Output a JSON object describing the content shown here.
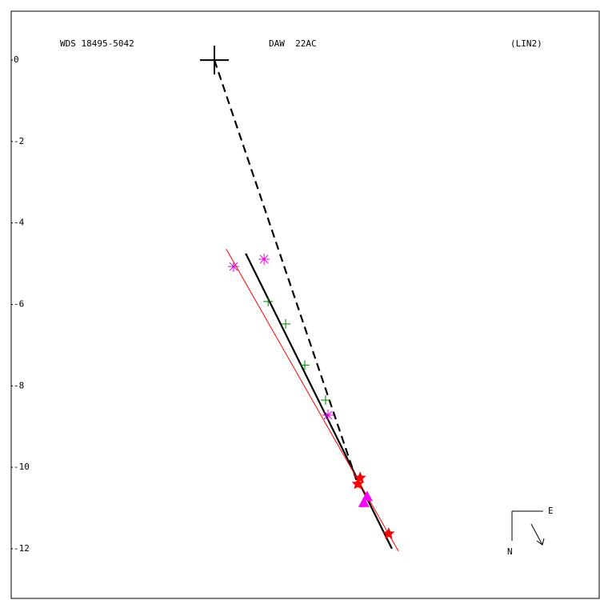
{
  "chart_data": {
    "type": "scatter",
    "title": "WDS 18495-5042",
    "subtitle": "DAW  22AC",
    "annotation": "(LIN2)",
    "xlim": [
      -4.99,
      9.45
    ],
    "ylim": [
      -13.22,
      1.2
    ],
    "yticks": [
      0,
      -2,
      -4,
      -6,
      -8,
      -10,
      -12
    ],
    "compass": [
      "E",
      "N"
    ],
    "series": [
      {
        "marker": "line-dashed",
        "color": "#000000",
        "x": [
          0,
          3.52
        ],
        "y": [
          0,
          -10.41
        ]
      },
      {
        "marker": "line",
        "color": "#000000",
        "x": [
          0.77,
          4.36
        ],
        "y": [
          -4.75,
          -12.0
        ]
      },
      {
        "marker": "line-thin",
        "color": "#ff0000",
        "x": [
          0.29,
          4.52
        ],
        "y": [
          -4.64,
          -12.06
        ]
      },
      {
        "marker": "plus-large",
        "color": "#000000",
        "x": [
          0
        ],
        "y": [
          0
        ]
      },
      {
        "marker": "plus",
        "color": "#008000",
        "x": [
          1.32,
          1.75,
          2.22,
          2.73
        ],
        "y": [
          -5.93,
          -6.48,
          -7.49,
          -8.35
        ]
      },
      {
        "marker": "asterisk",
        "color": "#e000e0",
        "x": [
          0.47,
          1.22,
          2.79
        ],
        "y": [
          -5.07,
          -4.89,
          -8.72
        ]
      },
      {
        "marker": "star",
        "color": "#ff0000",
        "x": [
          3.58,
          3.52,
          4.28
        ],
        "y": [
          -10.26,
          -10.41,
          -11.63
        ]
      },
      {
        "marker": "triangle",
        "color": "#ff00ff",
        "x": [
          3.75,
          3.67
        ],
        "y": [
          -10.71,
          -10.86
        ]
      }
    ]
  }
}
